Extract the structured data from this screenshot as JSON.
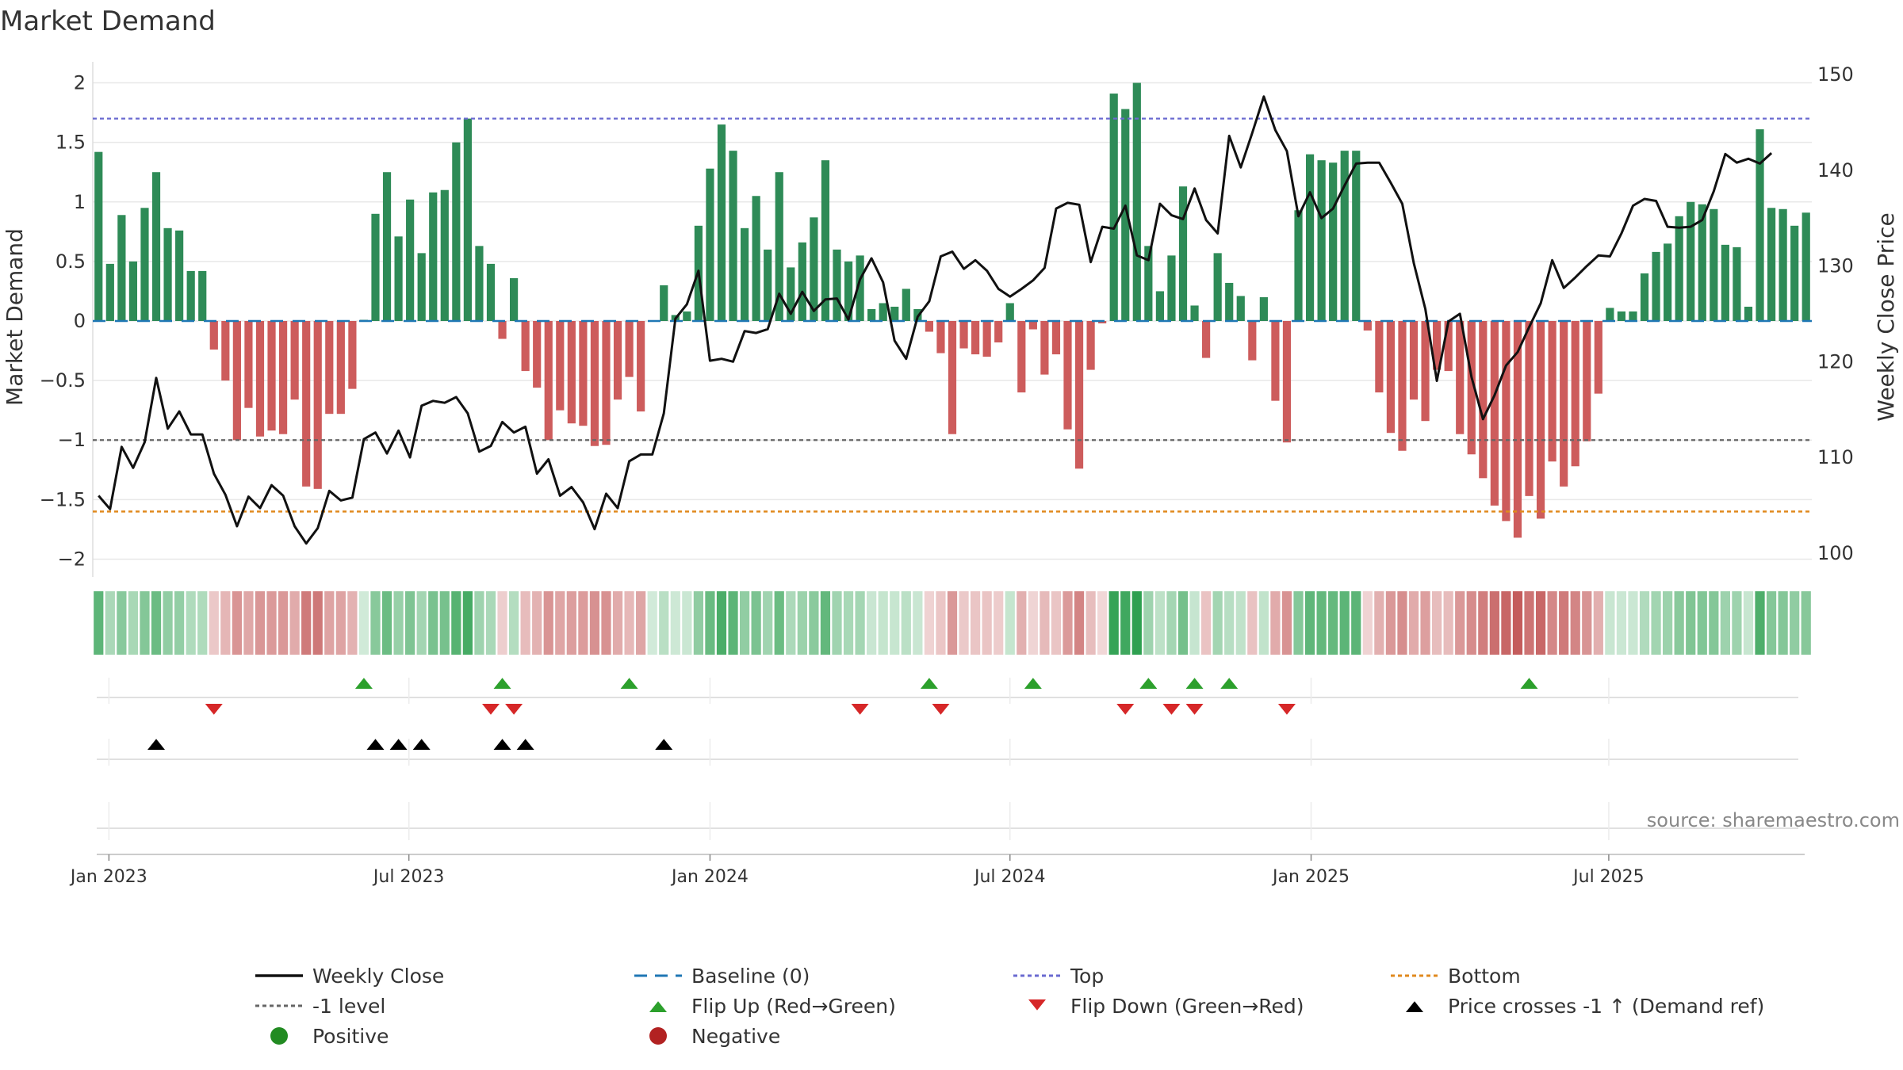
{
  "chart_data": {
    "type": "bar",
    "title": "Market Demand",
    "ylabel_left": "Market Demand",
    "ylabel_right": "Weekly Close Price",
    "ylim_left": [
      -2.15,
      2.15
    ],
    "ylim_right": [
      97.5,
      151
    ],
    "yticks_left": [
      2,
      1.5,
      1,
      0.5,
      0,
      -0.5,
      -1,
      -1.5,
      -2
    ],
    "yticks_left_labels": [
      "2",
      "1.5",
      "1",
      "0.5",
      "0",
      "−0.5",
      "−1",
      "−1.5",
      "−2"
    ],
    "yticks_right": [
      150,
      140,
      130,
      120,
      110,
      100
    ],
    "yticks_right_labels": [
      "150",
      "140",
      "130",
      "120",
      "110",
      "100"
    ],
    "x_start": "2022-12-26",
    "x_tick_labels": [
      "Jan 2023",
      "Jul 2023",
      "Jan 2024",
      "Jul 2024",
      "Jan 2025",
      "Jul 2025"
    ],
    "x_tick_weeks": [
      0.9,
      26.9,
      53.0,
      79.0,
      105.1,
      130.9
    ],
    "reference_lines": {
      "top": 1.7,
      "bottom": -1.6,
      "minus_one": -1,
      "baseline": 0
    },
    "demand": [
      1.42,
      0.48,
      0.89,
      0.5,
      0.95,
      1.25,
      0.78,
      0.76,
      0.42,
      0.42,
      -0.24,
      -0.5,
      -1.0,
      -0.73,
      -0.97,
      -0.92,
      -0.95,
      -0.66,
      -1.39,
      -1.41,
      -0.78,
      -0.78,
      -0.57,
      0.01,
      0.9,
      1.25,
      0.71,
      1.02,
      0.57,
      1.08,
      1.1,
      1.5,
      1.7,
      0.63,
      0.48,
      -0.15,
      0.36,
      -0.42,
      -0.56,
      -1.0,
      -0.75,
      -0.86,
      -0.88,
      -1.05,
      -1.04,
      -0.66,
      -0.47,
      -0.76,
      0.0,
      0.3,
      0.05,
      0.08,
      0.8,
      1.28,
      1.65,
      1.43,
      0.78,
      1.05,
      0.6,
      1.25,
      0.45,
      0.66,
      0.87,
      1.35,
      0.6,
      0.5,
      0.55,
      0.1,
      0.15,
      0.12,
      0.27,
      0.1,
      -0.09,
      -0.27,
      -0.95,
      -0.23,
      -0.28,
      -0.3,
      -0.18,
      0.15,
      -0.6,
      -0.07,
      -0.45,
      -0.28,
      -0.91,
      -1.24,
      -0.41,
      -0.02,
      1.91,
      1.78,
      2.0,
      0.63,
      0.25,
      0.55,
      1.13,
      0.13,
      -0.31,
      0.57,
      0.32,
      0.21,
      -0.33,
      0.2,
      -0.67,
      -1.02,
      0.93,
      1.4,
      1.35,
      1.33,
      1.43,
      1.43,
      -0.08,
      -0.6,
      -0.94,
      -1.09,
      -0.66,
      -0.84,
      -0.41,
      -0.42,
      -0.95,
      -1.12,
      -1.32,
      -1.55,
      -1.68,
      -1.82,
      -1.47,
      -1.66,
      -1.18,
      -1.39,
      -1.22,
      -1.01,
      -0.61,
      0.11,
      0.08,
      0.08,
      0.4,
      0.58,
      0.65,
      0.88,
      1.0,
      0.98,
      0.94,
      0.64,
      0.62,
      0.12,
      1.61,
      0.95,
      0.94,
      0.8,
      0.91
    ],
    "weekly_close": [
      106.0,
      104.6,
      111.1,
      108.9,
      111.6,
      118.3,
      113.0,
      114.8,
      112.4,
      112.4,
      108.3,
      106.1,
      102.8,
      105.9,
      104.7,
      107.1,
      106.0,
      102.8,
      101.0,
      102.6,
      106.5,
      105.5,
      105.8,
      111.9,
      112.6,
      110.4,
      112.8,
      110.0,
      115.4,
      115.9,
      115.7,
      116.3,
      114.6,
      110.6,
      111.2,
      113.7,
      112.6,
      113.2,
      108.3,
      109.8,
      106.0,
      106.9,
      105.3,
      102.5,
      106.2,
      104.7,
      109.6,
      110.3,
      110.3,
      114.6,
      124.5,
      126.0,
      129.5,
      120.1,
      120.3,
      120.0,
      123.2,
      123.0,
      123.4,
      127.1,
      125.0,
      127.3,
      125.3,
      126.5,
      126.6,
      124.4,
      128.6,
      130.8,
      128.3,
      122.2,
      120.3,
      124.7,
      126.3,
      131.0,
      131.5,
      129.7,
      130.6,
      129.5,
      127.6,
      126.8,
      127.6,
      128.5,
      129.8,
      136.0,
      136.6,
      136.4,
      130.4,
      134.1,
      133.9,
      136.3,
      131.1,
      130.6,
      136.5,
      135.3,
      134.9,
      138.1,
      134.8,
      133.4,
      143.6,
      140.3,
      143.9,
      147.7,
      144.2,
      142.0,
      135.2,
      137.7,
      135.0,
      136.0,
      138.4,
      140.7,
      140.8,
      140.8,
      138.7,
      136.5,
      130.3,
      125.5,
      118.0,
      124.2,
      125.0,
      118.4,
      114.0,
      116.5,
      119.6,
      121.0,
      123.6,
      126.1,
      130.6,
      127.7,
      128.8,
      130.0,
      131.1,
      131.0,
      133.4,
      136.3,
      137.0,
      136.8,
      134.1,
      134.0,
      134.1,
      134.8,
      137.8,
      141.7,
      140.8,
      141.2,
      140.7,
      141.8
    ],
    "heat_strip": [
      1.42,
      0.48,
      0.89,
      0.5,
      0.95,
      1.25,
      0.78,
      0.76,
      0.42,
      0.42,
      -0.24,
      -0.5,
      -1.0,
      -0.73,
      -0.97,
      -0.92,
      -0.95,
      -0.66,
      -1.39,
      -1.41,
      -0.78,
      -0.78,
      -0.57,
      0.01,
      0.9,
      1.25,
      0.71,
      1.02,
      0.57,
      1.08,
      1.1,
      1.5,
      1.7,
      0.63,
      0.48,
      -0.15,
      0.36,
      -0.42,
      -0.56,
      -1.0,
      -0.75,
      -0.86,
      -0.88,
      -1.05,
      -1.04,
      -0.66,
      -0.47,
      -0.76,
      0.0,
      0.3,
      0.05,
      0.08,
      0.8,
      1.28,
      1.65,
      1.43,
      0.78,
      1.05,
      0.6,
      1.25,
      0.45,
      0.66,
      0.87,
      1.35,
      0.6,
      0.5,
      0.55,
      0.1,
      0.15,
      0.12,
      0.27,
      0.1,
      -0.09,
      -0.27,
      -0.95,
      -0.23,
      -0.28,
      -0.3,
      -0.18,
      0.15,
      -0.6,
      -0.07,
      -0.45,
      -0.28,
      -0.91,
      -1.24,
      -0.41,
      -0.02,
      1.91,
      1.78,
      2.0,
      0.63,
      0.25,
      0.55,
      1.13,
      0.13,
      -0.31,
      0.57,
      0.32,
      0.21,
      -0.33,
      0.2,
      -0.67,
      -1.02,
      0.93,
      1.4,
      1.35,
      1.33,
      1.43,
      1.43,
      -0.08,
      -0.6,
      -0.94,
      -1.09,
      -0.66,
      -0.84,
      -0.41,
      -0.42,
      -0.95,
      -1.12,
      -1.32,
      -1.55,
      -1.68,
      -1.82,
      -1.47,
      -1.66,
      -1.18,
      -1.39,
      -1.22,
      -1.01,
      -0.61,
      0.11,
      0.08,
      0.08,
      0.4,
      0.58,
      0.65,
      0.88,
      1.0,
      0.98,
      0.94,
      0.64,
      0.62,
      0.12,
      1.61,
      0.95,
      0.94,
      0.8,
      0.91
    ],
    "flip_up_weeks": [
      23,
      35,
      46,
      72,
      81,
      91,
      95,
      98,
      124
    ],
    "flip_down_weeks": [
      10,
      34,
      36,
      66,
      73,
      89,
      93,
      95,
      103
    ],
    "price_cross_weeks": [
      5,
      24,
      26,
      28,
      35,
      37,
      49
    ],
    "source": "source: sharemaestro.com",
    "colors": {
      "positive_bar": "#2e8b57",
      "negative_bar": "#cd5c5c",
      "weekly_close": "#111111",
      "baseline": "#1f77b4",
      "top": "#6a6ad0",
      "bottom": "#e08a1e",
      "minus_one": "#666666",
      "flip_up": "#2ca02c",
      "flip_down": "#d62728",
      "price_cross": "#000000",
      "positive_dot": "#228b22",
      "negative_dot": "#b22222"
    },
    "legend": {
      "placement": "bottom",
      "items": [
        {
          "label": "Weekly Close",
          "kind": "line-solid",
          "color": "#111111"
        },
        {
          "label": "Baseline (0)",
          "kind": "line-dash",
          "color": "#1f77b4"
        },
        {
          "label": "Top",
          "kind": "line-dot",
          "color": "#6a6ad0"
        },
        {
          "label": "Bottom",
          "kind": "line-dot",
          "color": "#e08a1e"
        },
        {
          "label": "-1 level",
          "kind": "line-dot",
          "color": "#666666"
        },
        {
          "label": "Flip Up (Red→Green)",
          "kind": "tri-up",
          "color": "#2ca02c"
        },
        {
          "label": "Flip Down (Green→Red)",
          "kind": "tri-down",
          "color": "#d62728"
        },
        {
          "label": "Price crosses -1 ↑ (Demand ref)",
          "kind": "tri-up",
          "color": "#000000"
        },
        {
          "label": "Positive",
          "kind": "dot",
          "color": "#228b22"
        },
        {
          "label": "Negative",
          "kind": "dot",
          "color": "#b22222"
        }
      ]
    }
  }
}
